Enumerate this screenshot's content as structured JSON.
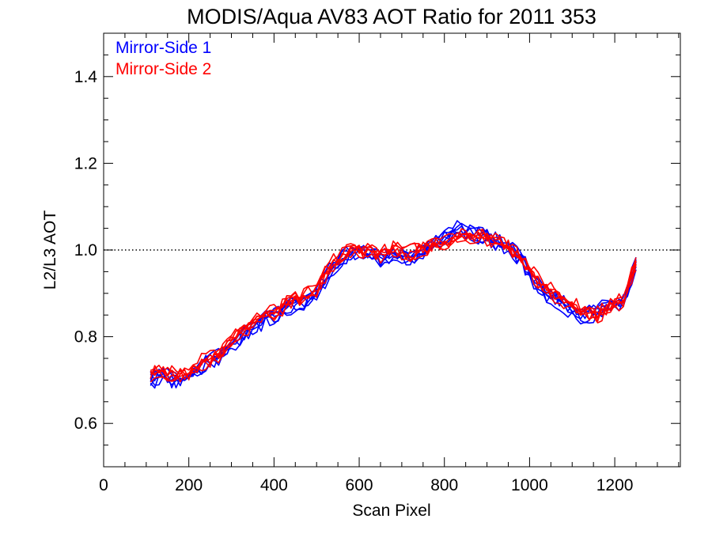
{
  "chart_data": {
    "type": "line",
    "title": "MODIS/Aqua AV83 AOT Ratio for 2011 353",
    "xlabel": "Scan Pixel",
    "ylabel": "L2/L3 AOT",
    "xlim": [
      0,
      1354
    ],
    "ylim": [
      0.5,
      1.5
    ],
    "x_ticks": [
      "0",
      "200",
      "400",
      "600",
      "800",
      "1000",
      "1200"
    ],
    "y_ticks": [
      "0.6",
      "0.8",
      "1.0",
      "1.2",
      "1.4"
    ],
    "reference_line": {
      "y": 1.0,
      "style": "dotted"
    },
    "grid": false,
    "legend_position": "top-left",
    "x": [
      110,
      140,
      170,
      200,
      230,
      260,
      290,
      320,
      350,
      380,
      410,
      440,
      470,
      500,
      530,
      560,
      590,
      620,
      650,
      680,
      710,
      740,
      770,
      800,
      830,
      860,
      890,
      920,
      950,
      980,
      1010,
      1040,
      1070,
      1100,
      1130,
      1160,
      1190,
      1220,
      1250
    ],
    "series": [
      {
        "name": "Mirror-Side 1",
        "color": "#0000ff",
        "values": [
          0.7,
          0.71,
          0.7,
          0.71,
          0.73,
          0.75,
          0.77,
          0.8,
          0.82,
          0.84,
          0.85,
          0.87,
          0.88,
          0.9,
          0.95,
          0.98,
          1.0,
          0.99,
          0.98,
          0.99,
          0.98,
          0.99,
          1.01,
          1.03,
          1.05,
          1.04,
          1.03,
          1.02,
          1.01,
          0.98,
          0.93,
          0.9,
          0.88,
          0.86,
          0.85,
          0.86,
          0.87,
          0.88,
          0.97
        ]
      },
      {
        "name": "Mirror-Side 2",
        "color": "#ff0000",
        "values": [
          0.71,
          0.72,
          0.71,
          0.72,
          0.74,
          0.75,
          0.78,
          0.81,
          0.83,
          0.85,
          0.86,
          0.88,
          0.89,
          0.91,
          0.96,
          0.99,
          1.0,
          1.0,
          0.99,
          1.0,
          0.99,
          1.0,
          1.01,
          1.02,
          1.03,
          1.03,
          1.03,
          1.02,
          1.01,
          0.98,
          0.94,
          0.91,
          0.89,
          0.87,
          0.86,
          0.85,
          0.87,
          0.88,
          0.97
        ]
      }
    ],
    "series_spread": 0.03,
    "lines_per_series": 6
  }
}
